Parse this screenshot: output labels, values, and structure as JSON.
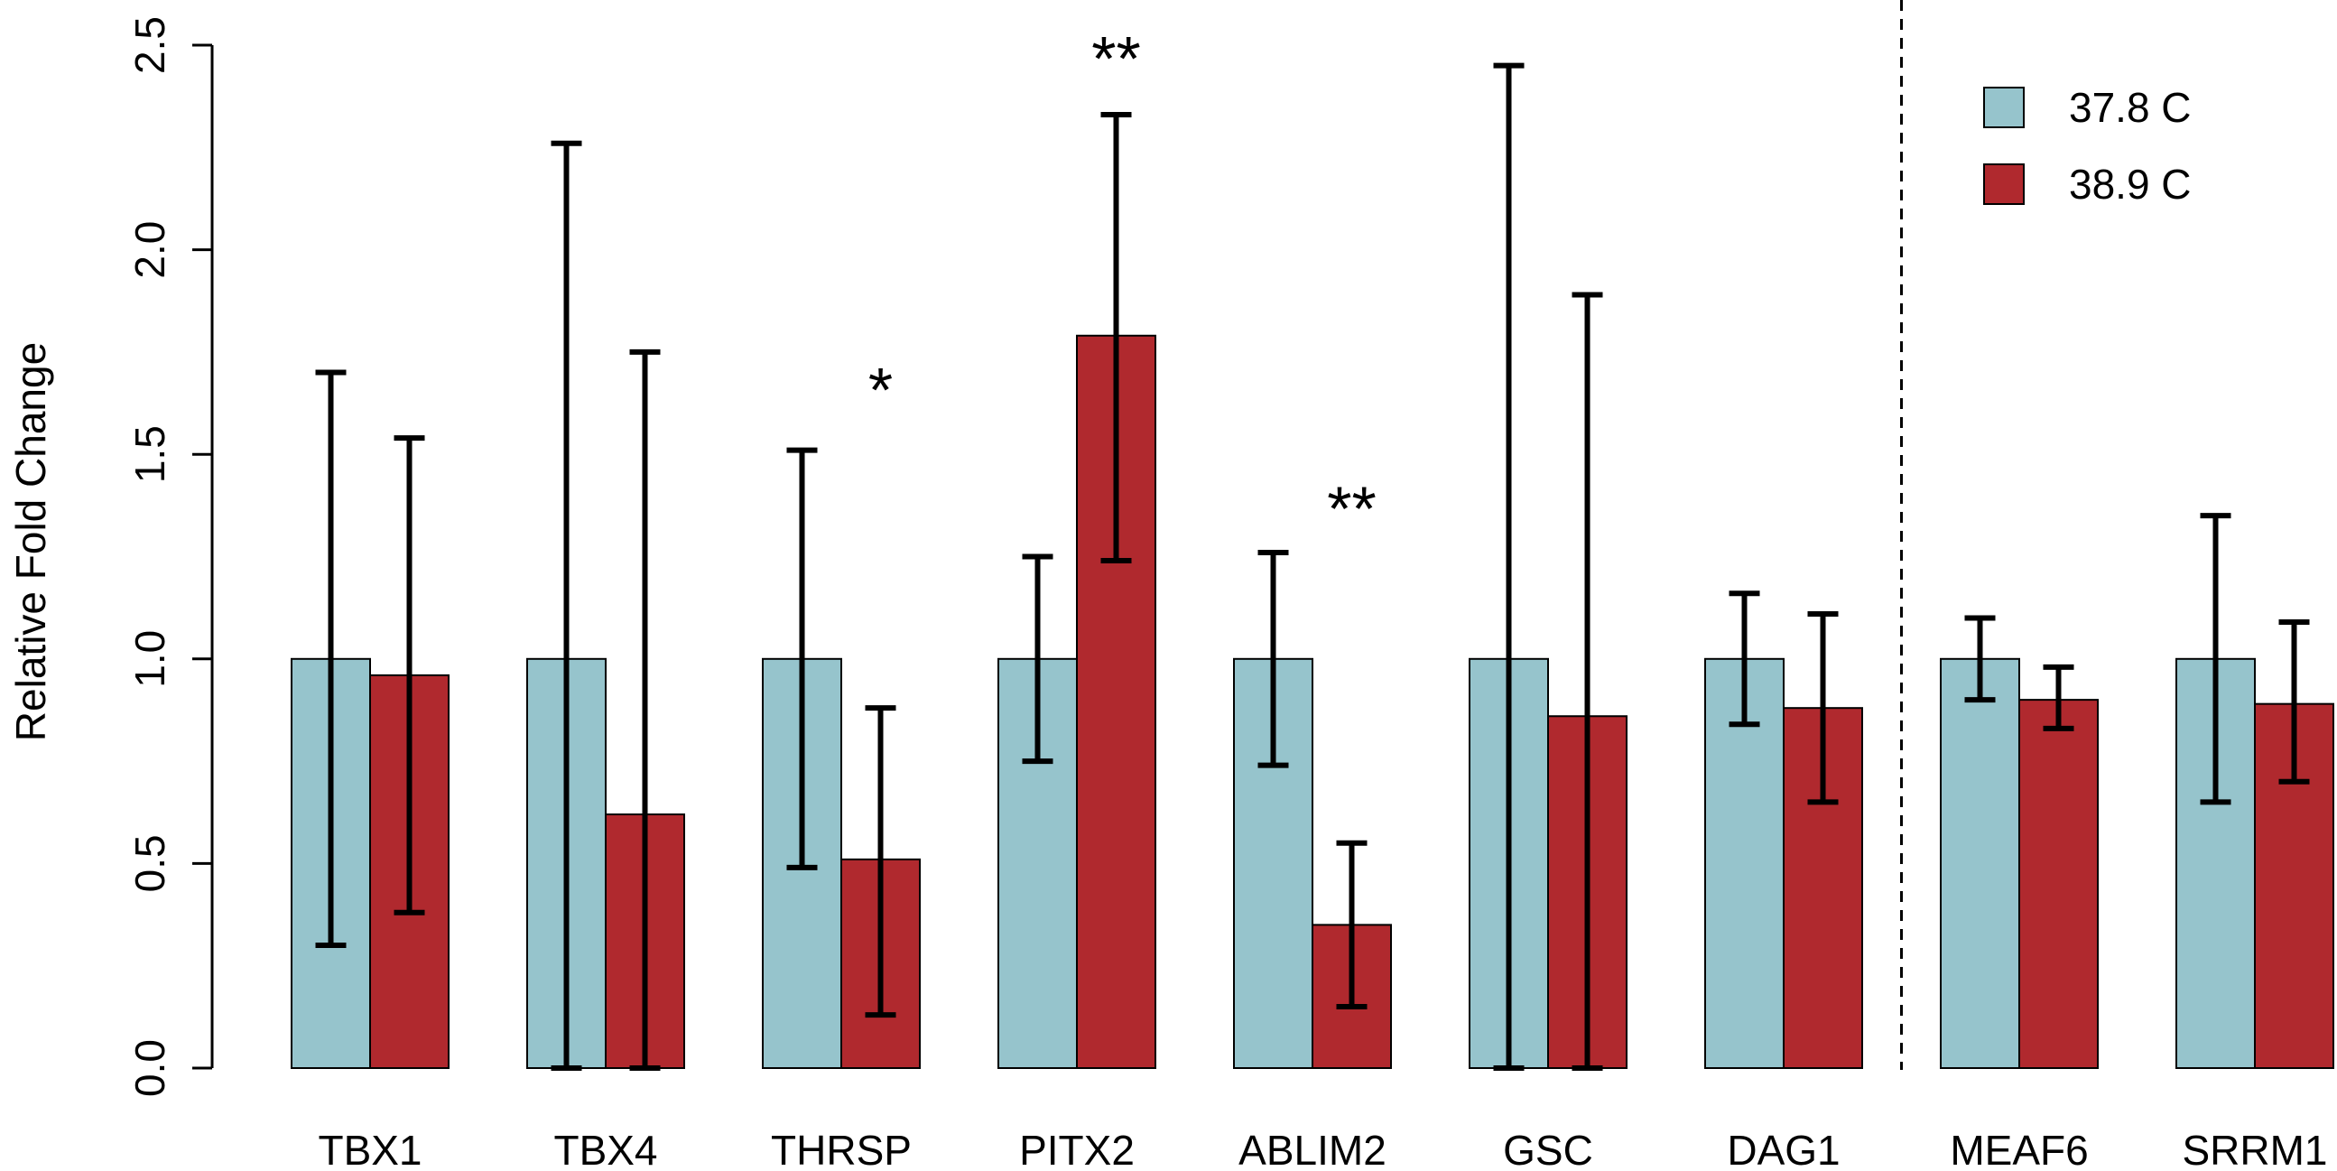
{
  "chart_data": {
    "type": "bar",
    "title": "",
    "xlabel": "",
    "ylabel": "Relative Fold Change",
    "ylim": [
      0,
      2.5
    ],
    "yticks": [
      "0.0",
      "0.5",
      "1.0",
      "1.5",
      "2.0",
      "2.5"
    ],
    "grid": false,
    "legend_position": "top-right",
    "categories": [
      "TBX1",
      "TBX4",
      "THRSP",
      "PITX2",
      "ABLIM2",
      "GSC",
      "DAG1",
      "MEAF6",
      "SRRM1"
    ],
    "series": [
      {
        "name": "37.8 C",
        "color": "#96c4cc",
        "values": [
          1.0,
          1.0,
          1.0,
          1.0,
          1.0,
          1.0,
          1.0,
          1.0,
          1.0
        ],
        "err_low": [
          0.3,
          0.0,
          0.49,
          0.75,
          0.74,
          0.0,
          0.84,
          0.9,
          0.65
        ],
        "err_high": [
          1.7,
          2.26,
          1.51,
          1.25,
          1.26,
          2.45,
          1.16,
          1.1,
          1.35
        ]
      },
      {
        "name": "38.9 C",
        "color": "#b0292e",
        "values": [
          0.96,
          0.62,
          0.51,
          1.79,
          0.35,
          0.86,
          0.88,
          0.9,
          0.89
        ],
        "err_low": [
          0.38,
          0.0,
          0.13,
          1.24,
          0.15,
          0.0,
          0.65,
          0.83,
          0.7
        ],
        "err_high": [
          1.54,
          1.75,
          0.88,
          2.33,
          0.55,
          1.89,
          1.11,
          0.98,
          1.09
        ]
      }
    ],
    "significance": [
      {
        "category": "THRSP",
        "label": "*",
        "y": 1.67
      },
      {
        "category": "PITX2",
        "label": "**",
        "y": 2.48
      },
      {
        "category": "ABLIM2",
        "label": "**",
        "y": 1.38
      }
    ],
    "separator_after": "DAG1"
  }
}
